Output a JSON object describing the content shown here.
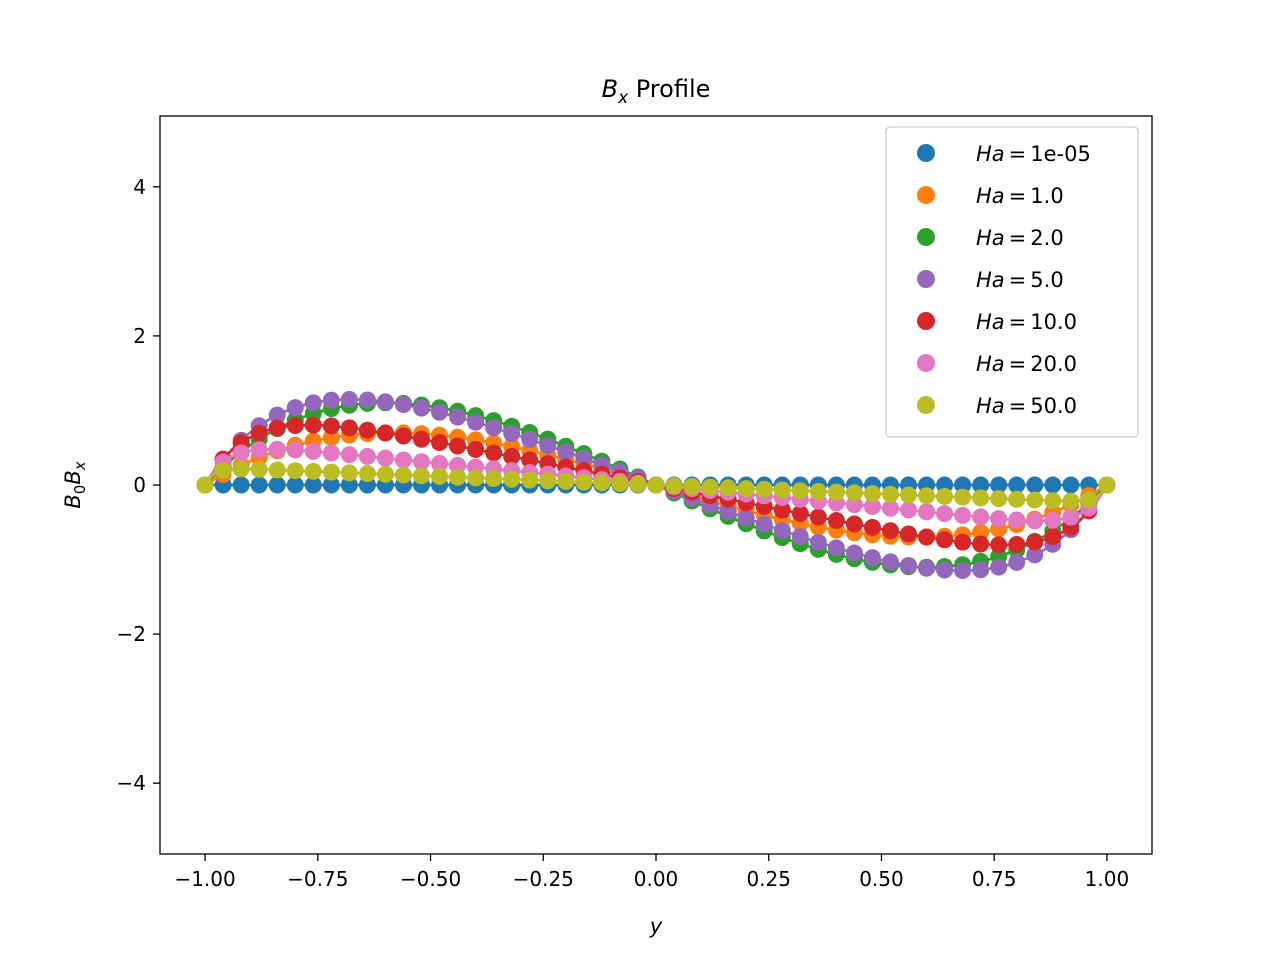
{
  "chart_data": {
    "type": "line",
    "title": {
      "main": "B",
      "sub": "x",
      "rest": " Profile"
    },
    "xlabel": "y",
    "ylabel": {
      "a": "B",
      "a_sub": "0",
      "b": "B",
      "b_sub": "x"
    },
    "xlim": [
      -1.1,
      1.1
    ],
    "ylim": [
      -4.95,
      4.95
    ],
    "xticks": [
      -1.0,
      -0.75,
      -0.5,
      -0.25,
      0.0,
      0.25,
      0.5,
      0.75,
      1.0
    ],
    "xtick_labels": [
      "−1.00",
      "−0.75",
      "−0.50",
      "−0.25",
      "0.00",
      "0.25",
      "0.50",
      "0.75",
      "1.00"
    ],
    "yticks": [
      -4,
      -2,
      0,
      2,
      4
    ],
    "ytick_labels": [
      "−4",
      "−2",
      "0",
      "2",
      "4"
    ],
    "grid": false,
    "legend_position": "top-right",
    "x_points": {
      "start": -1.0,
      "end": 1.0,
      "count": 51
    },
    "series": [
      {
        "name": "1e-05",
        "legend_prefix": "Ha",
        "legend_eq": "=",
        "Ha": 1e-05,
        "color": "#1f77b4"
      },
      {
        "name": "1.0",
        "legend_prefix": "Ha",
        "legend_eq": "=",
        "Ha": 1.0,
        "color": "#ff7f0e"
      },
      {
        "name": "2.0",
        "legend_prefix": "Ha",
        "legend_eq": "=",
        "Ha": 2.0,
        "color": "#2ca02c"
      },
      {
        "name": "5.0",
        "legend_prefix": "Ha",
        "legend_eq": "=",
        "Ha": 5.0,
        "color": "#9467bd"
      },
      {
        "name": "10.0",
        "legend_prefix": "Ha",
        "legend_eq": "=",
        "Ha": 10.0,
        "color": "#d62728"
      },
      {
        "name": "20.0",
        "legend_prefix": "Ha",
        "legend_eq": "=",
        "Ha": 20.0,
        "color": "#e377c2"
      },
      {
        "name": "50.0",
        "legend_prefix": "Ha",
        "legend_eq": "=",
        "Ha": 50.0,
        "color": "#bcbd22"
      }
    ]
  }
}
